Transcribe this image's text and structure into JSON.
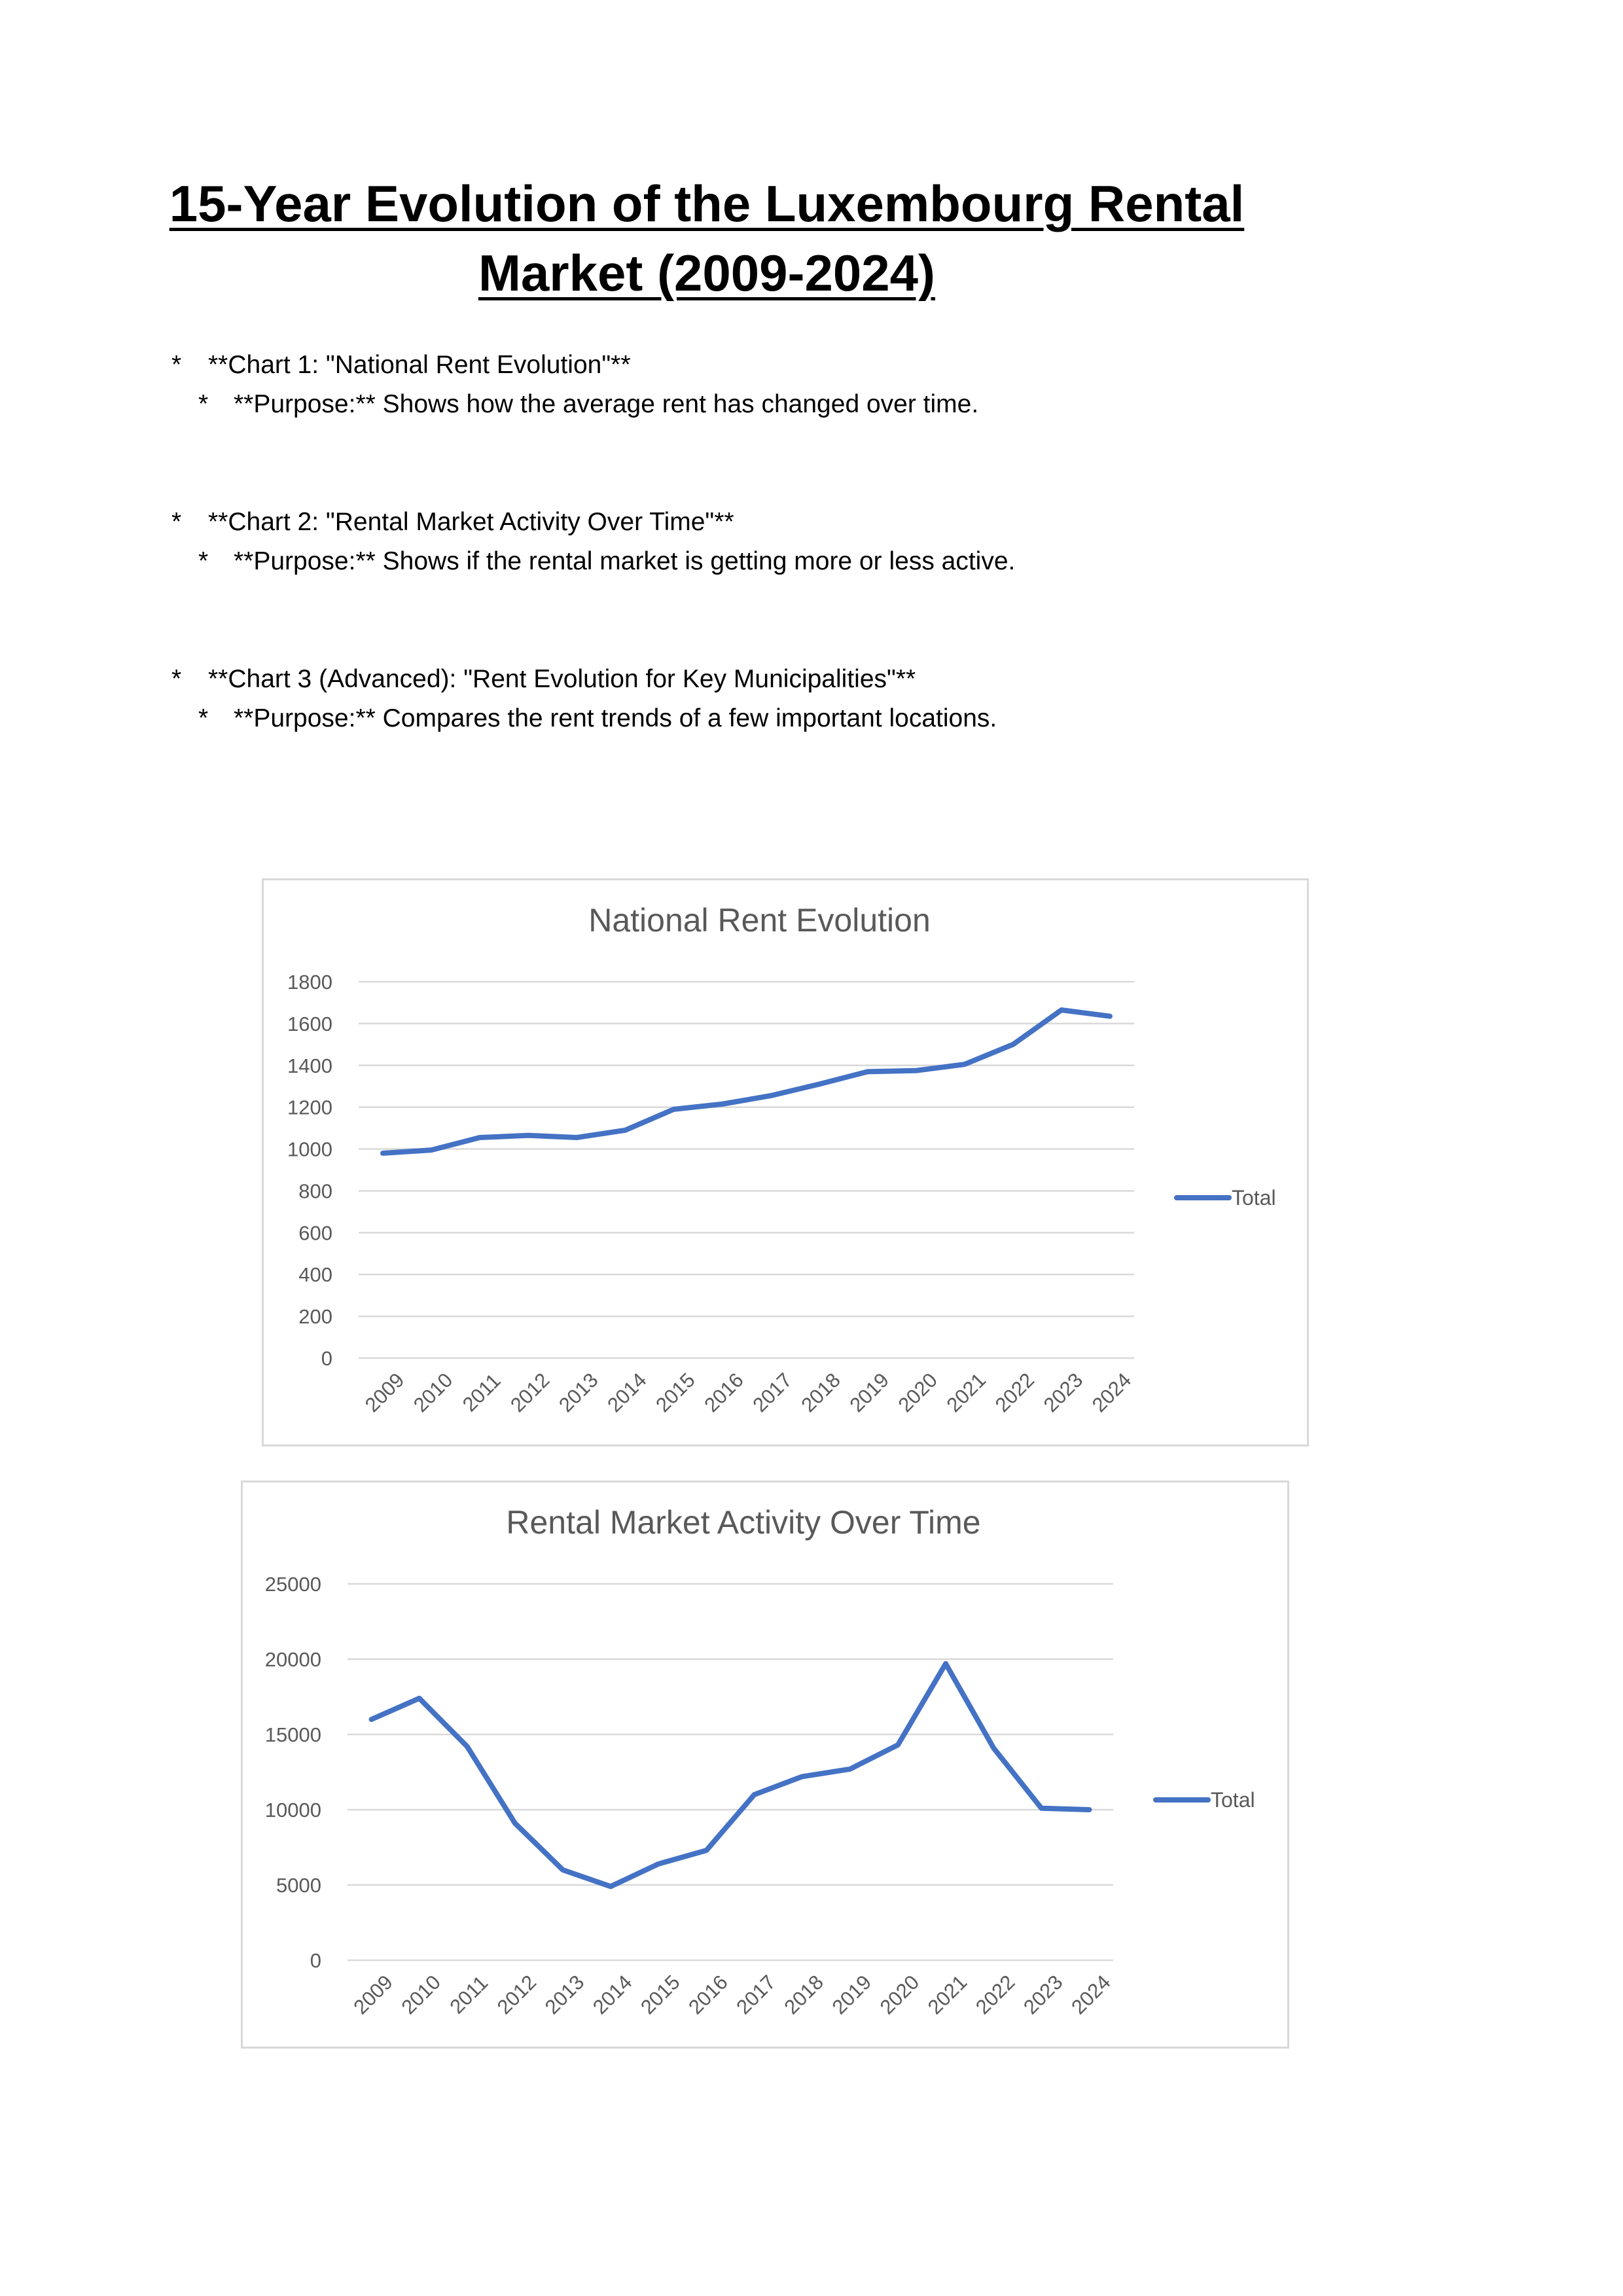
{
  "document": {
    "title_line1": "15-Year Evolution of the Luxembourg Rental ",
    "title_line2": "Market (2009-2024)",
    "bullets": [
      {
        "main": "**Chart 1: \"National Rent Evolution\"**",
        "sub": "**Purpose:** Shows how the average rent has changed over time."
      },
      {
        "main": "**Chart 2: \"Rental Market Activity Over Time\"**",
        "sub": "**Purpose:** Shows if the rental market is getting more or less active."
      },
      {
        "main": "**Chart 3 (Advanced): \"Rent Evolution for Key Municipalities\"**",
        "sub": "**Purpose:** Compares the rent trends of a few important locations."
      }
    ],
    "bullet_marker": "*"
  },
  "chart_data": [
    {
      "type": "line",
      "title": "National Rent Evolution",
      "categories": [
        "2009",
        "2010",
        "2011",
        "2012",
        "2013",
        "2014",
        "2015",
        "2016",
        "2017",
        "2018",
        "2019",
        "2020",
        "2021",
        "2022",
        "2023",
        "2024"
      ],
      "series": [
        {
          "name": "Total",
          "values": [
            980,
            995,
            1055,
            1065,
            1055,
            1090,
            1190,
            1215,
            1255,
            1310,
            1370,
            1375,
            1405,
            1500,
            1665,
            1635
          ]
        }
      ],
      "yticks": [
        "0",
        "200",
        "400",
        "600",
        "800",
        "1000",
        "1200",
        "1400",
        "1600",
        "1800"
      ],
      "ylim": [
        0,
        1800
      ],
      "grid": true,
      "legend": "right",
      "color": "#4472c4"
    },
    {
      "type": "line",
      "title": "Rental Market Activity Over Time",
      "categories": [
        "2009",
        "2010",
        "2011",
        "2012",
        "2013",
        "2014",
        "2015",
        "2016",
        "2017",
        "2018",
        "2019",
        "2020",
        "2021",
        "2022",
        "2023",
        "2024"
      ],
      "series": [
        {
          "name": "Total",
          "values": [
            16000,
            17400,
            14200,
            9100,
            6000,
            4900,
            6400,
            7300,
            11000,
            12200,
            12700,
            14300,
            19700,
            14100,
            10100,
            10000
          ]
        }
      ],
      "yticks": [
        "0",
        "5000",
        "10000",
        "15000",
        "20000",
        "25000"
      ],
      "ylim": [
        0,
        25000
      ],
      "grid": true,
      "legend": "right",
      "color": "#4472c4"
    }
  ]
}
